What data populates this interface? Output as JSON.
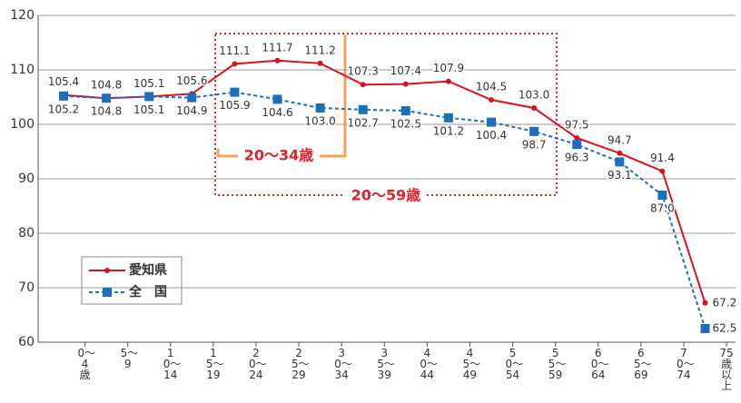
{
  "chart_data": {
    "type": "line",
    "categories": [
      "0〜4歳",
      "5〜9",
      "10〜14",
      "15〜19",
      "20〜24",
      "25〜29",
      "30〜34",
      "35〜39",
      "40〜44",
      "45〜49",
      "50〜54",
      "55〜59",
      "60〜64",
      "65〜69",
      "70〜74",
      "75歳以上"
    ],
    "series": [
      {
        "name": "愛知県",
        "color": "#d7141d",
        "dash": false,
        "values": [
          105.4,
          104.8,
          105.1,
          105.6,
          111.1,
          111.7,
          111.2,
          107.3,
          107.4,
          107.9,
          104.5,
          103.0,
          97.5,
          94.7,
          91.4,
          67.2
        ],
        "value_labels": [
          "105.4",
          "104.8",
          "105.1",
          "105.6",
          "111.1",
          "111.7",
          "111.2",
          "107.3",
          "107.4",
          "107.9",
          "104.5",
          "103.0",
          "97.5",
          "94.7",
          "91.4",
          "67.2"
        ]
      },
      {
        "name": "全　国",
        "color": "#1a6fbf",
        "dash": true,
        "values": [
          105.2,
          104.8,
          105.1,
          104.9,
          105.9,
          104.6,
          103.0,
          102.7,
          102.5,
          101.2,
          100.4,
          98.7,
          96.3,
          93.1,
          87.0,
          62.5
        ],
        "value_labels": [
          "105.2",
          "104.8",
          "105.1",
          "104.9",
          "105.9",
          "104.6",
          "103.0",
          "102.7",
          "102.5",
          "101.2",
          "100.4",
          "98.7",
          "96.3",
          "93.1",
          "87.0",
          "62.5"
        ]
      }
    ],
    "annotations": [
      "20〜34歳",
      "20〜59歳"
    ],
    "ylim": [
      60,
      120
    ],
    "yticks": [
      60,
      70,
      80,
      90,
      100,
      110,
      120
    ],
    "grid": true
  }
}
